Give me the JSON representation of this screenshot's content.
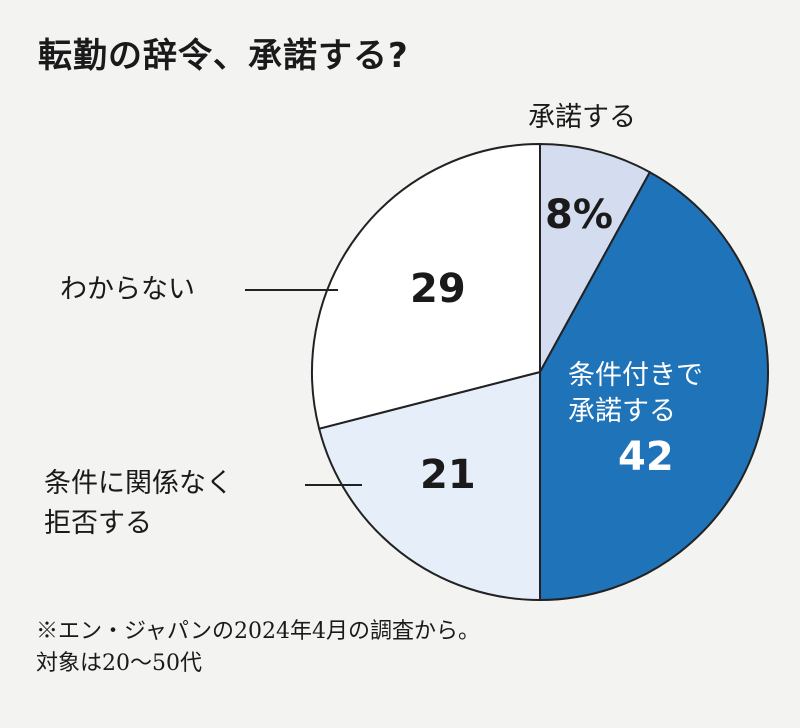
{
  "title": "転勤の辞令、承諾する?",
  "chart_data": {
    "type": "pie",
    "title": "転勤の辞令、承諾する?",
    "unit": "%",
    "start": "top",
    "direction": "clockwise",
    "slices": [
      {
        "label": "承諾する",
        "value": 8,
        "display": "8%",
        "color": "#d3ddef"
      },
      {
        "label": "条件付きで承諾する",
        "value": 42,
        "display": "42",
        "color": "#1f73b9"
      },
      {
        "label": "条件に関係なく拒否する",
        "value": 21,
        "display": "21",
        "color": "#e6eff9"
      },
      {
        "label": "わからない",
        "value": 29,
        "display": "29",
        "color": "#ffffff"
      }
    ]
  },
  "labels": {
    "s0": "承諾する",
    "s1a": "条件付きで",
    "s1b": "承諾する",
    "s2a": "条件に関係なく",
    "s2b": "拒否する",
    "s3": "わからない"
  },
  "note": {
    "line1": "※エン・ジャパンの2024年4月の調査から。",
    "line2": "対象は20～50代"
  }
}
